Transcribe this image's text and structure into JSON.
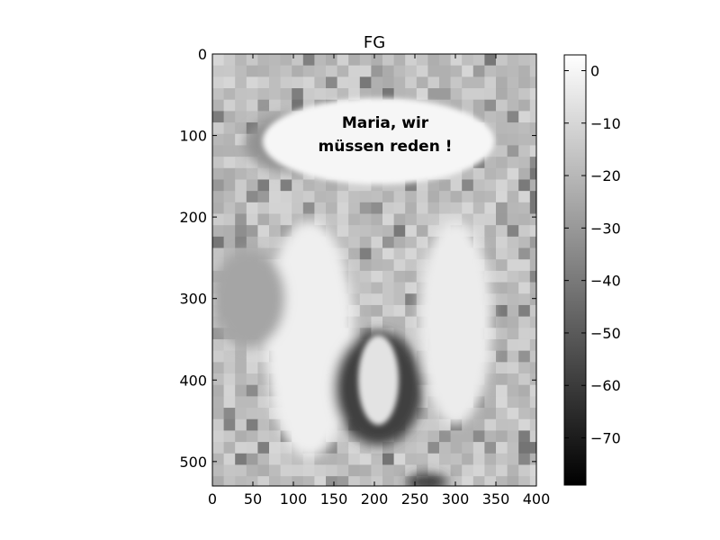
{
  "chart_data": {
    "type": "heatmap",
    "title": "FG",
    "xlabel": "",
    "ylabel": "",
    "x_ticks": [
      0,
      50,
      100,
      150,
      200,
      250,
      300,
      350,
      400
    ],
    "y_ticks": [
      0,
      100,
      200,
      300,
      400,
      500
    ],
    "xlim": [
      0,
      400
    ],
    "ylim": [
      530,
      0
    ],
    "colormap": "gray",
    "colorbar": {
      "min": -79,
      "max": 3,
      "ticks": [
        0,
        -10,
        -20,
        -30,
        -40,
        -50,
        -60,
        -70
      ]
    },
    "image_text": [
      "Maria, wir",
      "müssen reden !"
    ],
    "regions": [
      {
        "shape": "ellipse",
        "x": 205,
        "y": 107,
        "rx": 143,
        "ry": 53,
        "value": 0
      },
      {
        "shape": "ellipse",
        "x": 120,
        "y": 350,
        "rx": 55,
        "ry": 145,
        "value": -2
      },
      {
        "shape": "ellipse",
        "x": 300,
        "y": 330,
        "rx": 45,
        "ry": 125,
        "value": -3
      },
      {
        "shape": "ellipse",
        "x": 205,
        "y": 410,
        "rx": 55,
        "ry": 70,
        "value": -58
      },
      {
        "shape": "ellipse",
        "x": 205,
        "y": 400,
        "rx": 25,
        "ry": 55,
        "value": -6
      },
      {
        "shape": "ellipse",
        "x": 100,
        "y": 110,
        "rx": 60,
        "ry": 35,
        "value": -32
      },
      {
        "shape": "ellipse",
        "x": 45,
        "y": 300,
        "rx": 45,
        "ry": 60,
        "value": -26
      },
      {
        "shape": "ellipse",
        "x": 265,
        "y": 525,
        "rx": 25,
        "ry": 10,
        "value": -62
      }
    ]
  }
}
